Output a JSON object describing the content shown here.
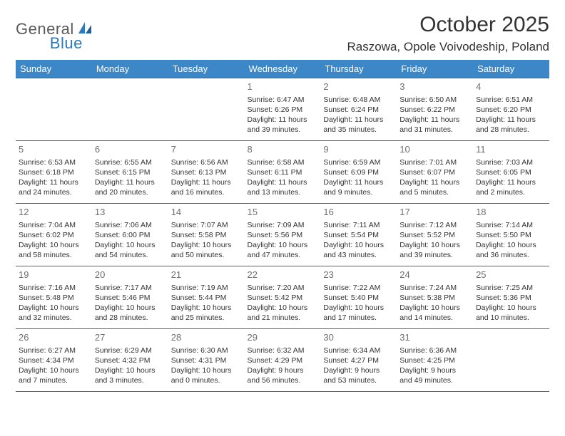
{
  "logo": {
    "text1": "General",
    "text2": "Blue"
  },
  "title": "October 2025",
  "location": "Raszowa, Opole Voivodeship, Poland",
  "styling": {
    "header_bg": "#3b87c8",
    "header_text_color": "#ffffff",
    "border_color": "#2a6aa8",
    "daynum_color": "#6f6f6f",
    "body_text_color": "#333333",
    "logo_gray": "#5a5a5a",
    "logo_blue": "#2a7ac0",
    "page_bg": "#ffffff",
    "month_title_fontsize": 30,
    "location_fontsize": 17,
    "header_fontsize": 13,
    "cell_fontsize": 10.5,
    "daynum_fontsize": 13
  },
  "day_labels": [
    "Sunday",
    "Monday",
    "Tuesday",
    "Wednesday",
    "Thursday",
    "Friday",
    "Saturday"
  ],
  "weeks": [
    [
      {
        "day": "",
        "sunrise": "",
        "sunset": "",
        "daylight1": "",
        "daylight2": ""
      },
      {
        "day": "",
        "sunrise": "",
        "sunset": "",
        "daylight1": "",
        "daylight2": ""
      },
      {
        "day": "",
        "sunrise": "",
        "sunset": "",
        "daylight1": "",
        "daylight2": ""
      },
      {
        "day": "1",
        "sunrise": "Sunrise: 6:47 AM",
        "sunset": "Sunset: 6:26 PM",
        "daylight1": "Daylight: 11 hours",
        "daylight2": "and 39 minutes."
      },
      {
        "day": "2",
        "sunrise": "Sunrise: 6:48 AM",
        "sunset": "Sunset: 6:24 PM",
        "daylight1": "Daylight: 11 hours",
        "daylight2": "and 35 minutes."
      },
      {
        "day": "3",
        "sunrise": "Sunrise: 6:50 AM",
        "sunset": "Sunset: 6:22 PM",
        "daylight1": "Daylight: 11 hours",
        "daylight2": "and 31 minutes."
      },
      {
        "day": "4",
        "sunrise": "Sunrise: 6:51 AM",
        "sunset": "Sunset: 6:20 PM",
        "daylight1": "Daylight: 11 hours",
        "daylight2": "and 28 minutes."
      }
    ],
    [
      {
        "day": "5",
        "sunrise": "Sunrise: 6:53 AM",
        "sunset": "Sunset: 6:18 PM",
        "daylight1": "Daylight: 11 hours",
        "daylight2": "and 24 minutes."
      },
      {
        "day": "6",
        "sunrise": "Sunrise: 6:55 AM",
        "sunset": "Sunset: 6:15 PM",
        "daylight1": "Daylight: 11 hours",
        "daylight2": "and 20 minutes."
      },
      {
        "day": "7",
        "sunrise": "Sunrise: 6:56 AM",
        "sunset": "Sunset: 6:13 PM",
        "daylight1": "Daylight: 11 hours",
        "daylight2": "and 16 minutes."
      },
      {
        "day": "8",
        "sunrise": "Sunrise: 6:58 AM",
        "sunset": "Sunset: 6:11 PM",
        "daylight1": "Daylight: 11 hours",
        "daylight2": "and 13 minutes."
      },
      {
        "day": "9",
        "sunrise": "Sunrise: 6:59 AM",
        "sunset": "Sunset: 6:09 PM",
        "daylight1": "Daylight: 11 hours",
        "daylight2": "and 9 minutes."
      },
      {
        "day": "10",
        "sunrise": "Sunrise: 7:01 AM",
        "sunset": "Sunset: 6:07 PM",
        "daylight1": "Daylight: 11 hours",
        "daylight2": "and 5 minutes."
      },
      {
        "day": "11",
        "sunrise": "Sunrise: 7:03 AM",
        "sunset": "Sunset: 6:05 PM",
        "daylight1": "Daylight: 11 hours",
        "daylight2": "and 2 minutes."
      }
    ],
    [
      {
        "day": "12",
        "sunrise": "Sunrise: 7:04 AM",
        "sunset": "Sunset: 6:02 PM",
        "daylight1": "Daylight: 10 hours",
        "daylight2": "and 58 minutes."
      },
      {
        "day": "13",
        "sunrise": "Sunrise: 7:06 AM",
        "sunset": "Sunset: 6:00 PM",
        "daylight1": "Daylight: 10 hours",
        "daylight2": "and 54 minutes."
      },
      {
        "day": "14",
        "sunrise": "Sunrise: 7:07 AM",
        "sunset": "Sunset: 5:58 PM",
        "daylight1": "Daylight: 10 hours",
        "daylight2": "and 50 minutes."
      },
      {
        "day": "15",
        "sunrise": "Sunrise: 7:09 AM",
        "sunset": "Sunset: 5:56 PM",
        "daylight1": "Daylight: 10 hours",
        "daylight2": "and 47 minutes."
      },
      {
        "day": "16",
        "sunrise": "Sunrise: 7:11 AM",
        "sunset": "Sunset: 5:54 PM",
        "daylight1": "Daylight: 10 hours",
        "daylight2": "and 43 minutes."
      },
      {
        "day": "17",
        "sunrise": "Sunrise: 7:12 AM",
        "sunset": "Sunset: 5:52 PM",
        "daylight1": "Daylight: 10 hours",
        "daylight2": "and 39 minutes."
      },
      {
        "day": "18",
        "sunrise": "Sunrise: 7:14 AM",
        "sunset": "Sunset: 5:50 PM",
        "daylight1": "Daylight: 10 hours",
        "daylight2": "and 36 minutes."
      }
    ],
    [
      {
        "day": "19",
        "sunrise": "Sunrise: 7:16 AM",
        "sunset": "Sunset: 5:48 PM",
        "daylight1": "Daylight: 10 hours",
        "daylight2": "and 32 minutes."
      },
      {
        "day": "20",
        "sunrise": "Sunrise: 7:17 AM",
        "sunset": "Sunset: 5:46 PM",
        "daylight1": "Daylight: 10 hours",
        "daylight2": "and 28 minutes."
      },
      {
        "day": "21",
        "sunrise": "Sunrise: 7:19 AM",
        "sunset": "Sunset: 5:44 PM",
        "daylight1": "Daylight: 10 hours",
        "daylight2": "and 25 minutes."
      },
      {
        "day": "22",
        "sunrise": "Sunrise: 7:20 AM",
        "sunset": "Sunset: 5:42 PM",
        "daylight1": "Daylight: 10 hours",
        "daylight2": "and 21 minutes."
      },
      {
        "day": "23",
        "sunrise": "Sunrise: 7:22 AM",
        "sunset": "Sunset: 5:40 PM",
        "daylight1": "Daylight: 10 hours",
        "daylight2": "and 17 minutes."
      },
      {
        "day": "24",
        "sunrise": "Sunrise: 7:24 AM",
        "sunset": "Sunset: 5:38 PM",
        "daylight1": "Daylight: 10 hours",
        "daylight2": "and 14 minutes."
      },
      {
        "day": "25",
        "sunrise": "Sunrise: 7:25 AM",
        "sunset": "Sunset: 5:36 PM",
        "daylight1": "Daylight: 10 hours",
        "daylight2": "and 10 minutes."
      }
    ],
    [
      {
        "day": "26",
        "sunrise": "Sunrise: 6:27 AM",
        "sunset": "Sunset: 4:34 PM",
        "daylight1": "Daylight: 10 hours",
        "daylight2": "and 7 minutes."
      },
      {
        "day": "27",
        "sunrise": "Sunrise: 6:29 AM",
        "sunset": "Sunset: 4:32 PM",
        "daylight1": "Daylight: 10 hours",
        "daylight2": "and 3 minutes."
      },
      {
        "day": "28",
        "sunrise": "Sunrise: 6:30 AM",
        "sunset": "Sunset: 4:31 PM",
        "daylight1": "Daylight: 10 hours",
        "daylight2": "and 0 minutes."
      },
      {
        "day": "29",
        "sunrise": "Sunrise: 6:32 AM",
        "sunset": "Sunset: 4:29 PM",
        "daylight1": "Daylight: 9 hours",
        "daylight2": "and 56 minutes."
      },
      {
        "day": "30",
        "sunrise": "Sunrise: 6:34 AM",
        "sunset": "Sunset: 4:27 PM",
        "daylight1": "Daylight: 9 hours",
        "daylight2": "and 53 minutes."
      },
      {
        "day": "31",
        "sunrise": "Sunrise: 6:36 AM",
        "sunset": "Sunset: 4:25 PM",
        "daylight1": "Daylight: 9 hours",
        "daylight2": "and 49 minutes."
      },
      {
        "day": "",
        "sunrise": "",
        "sunset": "",
        "daylight1": "",
        "daylight2": ""
      }
    ]
  ]
}
